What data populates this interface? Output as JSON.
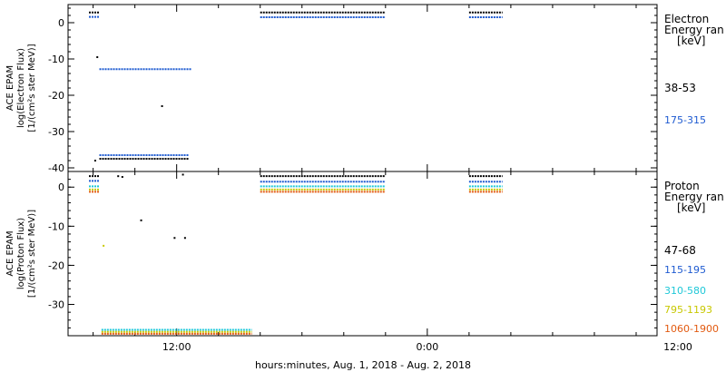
{
  "chart_data": [
    {
      "type": "scatter",
      "panel": "electron",
      "ylabel": [
        "ACE EPAM",
        "log(Electron Flux)",
        "[1/(cm²s ster MeV)]"
      ],
      "ylim": [
        -41,
        5
      ],
      "yticks": [
        0,
        -10,
        -20,
        -30,
        -40
      ],
      "legend_title": [
        "Electron",
        "Energy ran",
        "[keV]"
      ],
      "series": [
        {
          "name": "38-53",
          "color": "#000000",
          "segments": [
            {
              "x": [
                7.8,
                8.3
              ],
              "y": 2.8
            },
            {
              "x": [
                16.0,
                22.0
              ],
              "y": 2.8
            },
            {
              "x": [
                26.0,
                27.6
              ],
              "y": 2.8
            },
            {
              "x": [
                8.3,
                12.6
              ],
              "y": -37.5
            }
          ],
          "points": [
            [
              8.2,
              -9.5
            ],
            [
              8.1,
              -38
            ],
            [
              11.3,
              -23
            ]
          ]
        },
        {
          "name": "175-315",
          "color": "#1f5bd1",
          "segments": [
            {
              "x": [
                7.8,
                8.3
              ],
              "y": 1.6
            },
            {
              "x": [
                16.0,
                22.0
              ],
              "y": 1.5
            },
            {
              "x": [
                26.0,
                27.6
              ],
              "y": 1.5
            },
            {
              "x": [
                8.3,
                12.7
              ],
              "y": -12.8
            },
            {
              "x": [
                8.3,
                12.6
              ],
              "y": -36.5
            }
          ],
          "points": []
        }
      ]
    },
    {
      "type": "scatter",
      "panel": "proton",
      "ylabel": [
        "ACE EPAM",
        "log(Proton Flux)",
        "[1/(cm²s ster MeV)]"
      ],
      "ylim": [
        -38,
        4
      ],
      "yticks": [
        0,
        -10,
        -20,
        -30
      ],
      "legend_title": [
        "Proton",
        "Energy ran",
        "[keV]"
      ],
      "series": [
        {
          "name": "47-68",
          "color": "#000000",
          "segments": [
            {
              "x": [
                7.8,
                8.3
              ],
              "y": 2.8
            },
            {
              "x": [
                16.0,
                22.0
              ],
              "y": 2.8
            },
            {
              "x": [
                26.0,
                27.6
              ],
              "y": 2.8
            }
          ],
          "points": [
            [
              9.2,
              2.8
            ],
            [
              9.4,
              2.6
            ],
            [
              10.3,
              -8.5
            ],
            [
              11.9,
              -13
            ],
            [
              12.4,
              -13
            ],
            [
              12.3,
              3.2
            ]
          ]
        },
        {
          "name": "115-195",
          "color": "#1f5bd1",
          "segments": [
            {
              "x": [
                7.8,
                8.3
              ],
              "y": 1.6
            },
            {
              "x": [
                16.0,
                22.0
              ],
              "y": 1.4
            },
            {
              "x": [
                26.0,
                27.6
              ],
              "y": 1.4
            }
          ],
          "points": []
        },
        {
          "name": "310-580",
          "color": "#1fc8d8",
          "segments": [
            {
              "x": [
                7.8,
                8.3
              ],
              "y": 0.2
            },
            {
              "x": [
                16.0,
                22.0
              ],
              "y": 0.2
            },
            {
              "x": [
                26.0,
                27.6
              ],
              "y": 0.2
            },
            {
              "x": [
                8.4,
                15.6
              ],
              "y": -36.5
            }
          ],
          "points": []
        },
        {
          "name": "795-1193",
          "color": "#c8c800",
          "segments": [
            {
              "x": [
                7.8,
                8.3
              ],
              "y": -0.6
            },
            {
              "x": [
                16.0,
                22.0
              ],
              "y": -0.6
            },
            {
              "x": [
                26.0,
                27.6
              ],
              "y": -0.6
            },
            {
              "x": [
                8.4,
                15.6
              ],
              "y": -37.0
            }
          ],
          "points": [
            [
              8.5,
              -15
            ]
          ]
        },
        {
          "name": "1060-1900",
          "color": "#e25a10",
          "segments": [
            {
              "x": [
                7.8,
                8.3
              ],
              "y": -1.2
            },
            {
              "x": [
                16.0,
                22.0
              ],
              "y": -1.2
            },
            {
              "x": [
                26.0,
                27.6
              ],
              "y": -1.2
            },
            {
              "x": [
                8.4,
                15.6
              ],
              "y": -37.5
            }
          ],
          "points": []
        }
      ]
    }
  ],
  "xaxis": {
    "label": "hours:minutes, Aug.  1, 2018 - Aug.  2, 2018",
    "xlim": [
      6.8,
      35.0
    ],
    "major_ticks": [
      12,
      24,
      36
    ],
    "tick_labels": [
      "12:00",
      "0:00",
      "12:00"
    ],
    "minor_step": 2
  }
}
